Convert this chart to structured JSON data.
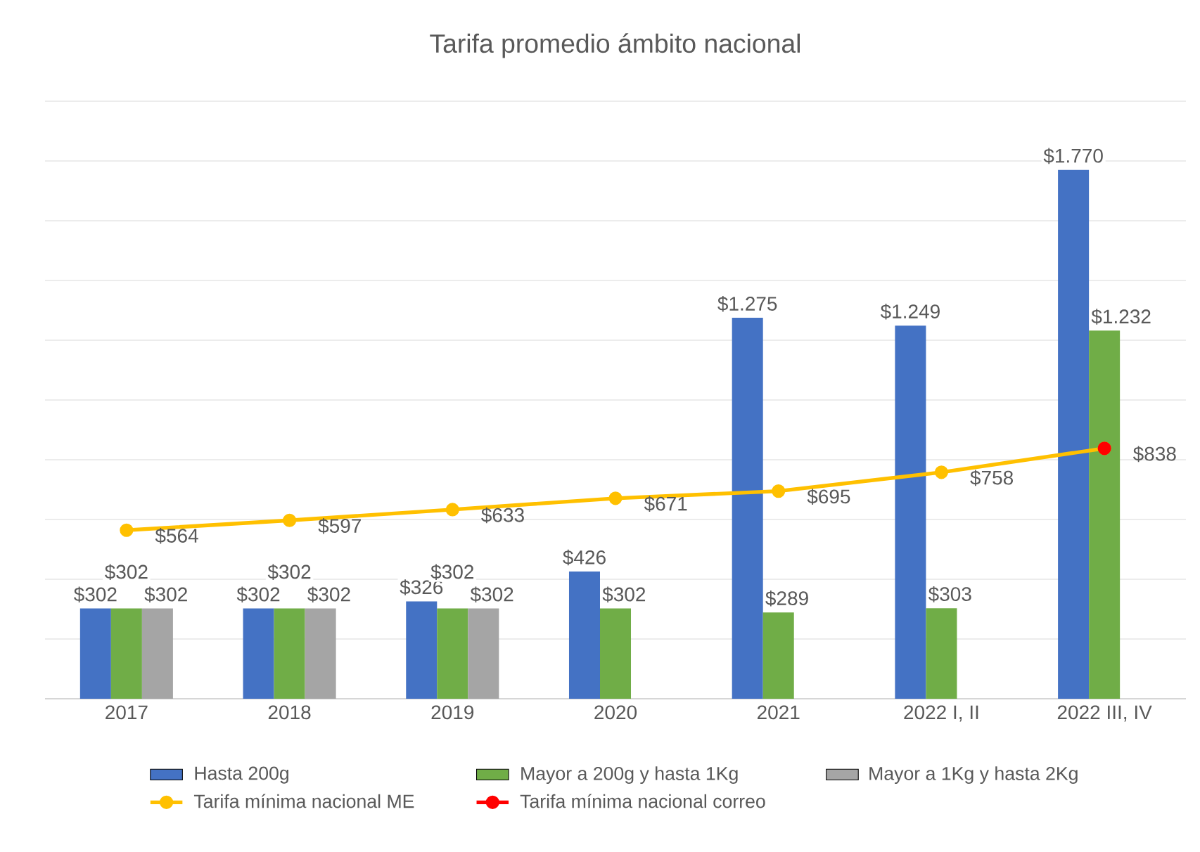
{
  "chart_data": {
    "type": "bar",
    "title": "Tarifa promedio ámbito nacional",
    "categories": [
      "2017",
      "2018",
      "2019",
      "2020",
      "2021",
      "2022 I, II",
      "2022 III, IV"
    ],
    "series": [
      {
        "name": "Hasta 200g",
        "color": "#4472c4",
        "values": [
          302,
          302,
          326,
          426,
          1275,
          1249,
          1770
        ],
        "value_labels": [
          "$302",
          "$302",
          "$326",
          "$426",
          "$1.275",
          "$1.249",
          "$1.770"
        ]
      },
      {
        "name": "Mayor a 200g y hasta 1Kg",
        "color": "#70ad47",
        "values": [
          302,
          302,
          302,
          302,
          289,
          303,
          1232
        ],
        "value_labels": [
          "$302",
          "$302",
          "$302",
          "$302",
          "$289",
          "$303",
          "$1.232"
        ]
      },
      {
        "name": "Mayor a 1Kg y hasta 2Kg",
        "color": "#a5a5a5",
        "values": [
          302,
          302,
          302,
          null,
          null,
          null,
          null
        ],
        "value_labels": [
          "$302",
          "$302",
          "$302",
          null,
          null,
          null,
          null
        ]
      },
      {
        "name": "Tarifa mínima nacional ME",
        "type": "line",
        "marker": "circle",
        "color": "#ffc000",
        "values": [
          564,
          597,
          633,
          671,
          695,
          758,
          838
        ],
        "value_labels": [
          "$564",
          "$597",
          "$633",
          "$671",
          "$695",
          "$758",
          "$838"
        ]
      },
      {
        "name": "Tarifa mínima nacional correo",
        "type": "line",
        "marker": "circle",
        "color": "#ff0000",
        "values": [
          null,
          null,
          null,
          null,
          null,
          null,
          838
        ]
      }
    ],
    "ylim": [
      0,
      2000
    ],
    "yticks": [
      {
        "value": 0,
        "label": null
      },
      {
        "value": 200,
        "label": null
      },
      {
        "value": 400,
        "label": null
      },
      {
        "value": 600,
        "label": null
      },
      {
        "value": 800,
        "label": null
      },
      {
        "value": 1000,
        "label": null
      },
      {
        "value": 1200,
        "label": null
      },
      {
        "value": 1400,
        "label": null
      },
      {
        "value": 1600,
        "label": null
      },
      {
        "value": 1800,
        "label": null
      },
      {
        "value": 2000,
        "label": null
      }
    ],
    "tick_labels": "x",
    "grid": "y",
    "legend": "bottom"
  }
}
